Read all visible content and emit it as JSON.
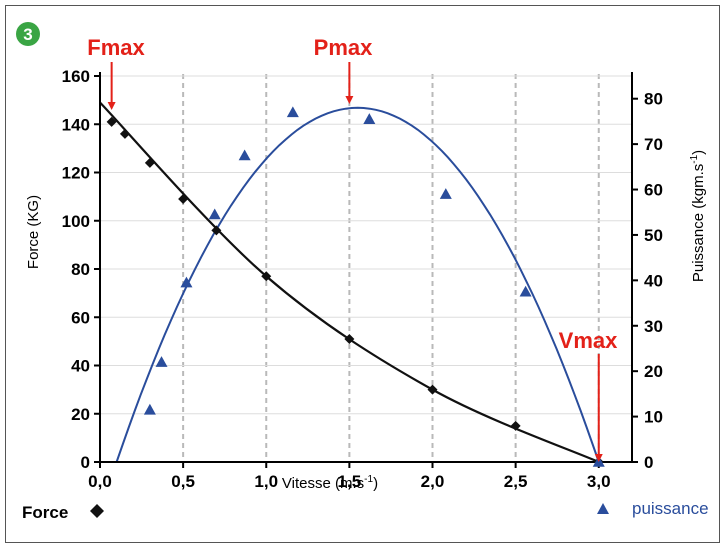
{
  "figure_number": "3",
  "colors": {
    "badge": "#3aa544",
    "force": "#111111",
    "power": "#2a4d9c",
    "annotation": "#e32119",
    "grid": "#b9b9b9",
    "axis": "#000000"
  },
  "chart_data": {
    "type": "scatter",
    "xlabel": "Vitesse (m.s",
    "xlabel_sup": "-1",
    "xlabel_end": ")",
    "ylabel_left": "Force (KG)",
    "ylabel_right": "Puissance (kgm.s",
    "ylabel_right_sup": "-1",
    "ylabel_right_end": ")",
    "xlim": [
      0,
      3.2
    ],
    "ylim_left": [
      0,
      160
    ],
    "ylim_right": [
      0,
      85
    ],
    "x_ticks": [
      "0,0",
      "0,5",
      "1,0",
      "1,5",
      "2,0",
      "2,5",
      "3,0"
    ],
    "x_tick_values": [
      0,
      0.5,
      1.0,
      1.5,
      2.0,
      2.5,
      3.0
    ],
    "y_left_ticks": [
      0,
      20,
      40,
      60,
      80,
      100,
      120,
      140,
      160
    ],
    "y_right_ticks": [
      0,
      10,
      20,
      30,
      40,
      50,
      60,
      70,
      80
    ],
    "grid": "vertical dashed at major x ticks",
    "series": [
      {
        "name": "Force",
        "marker": "diamond",
        "axis": "left",
        "points": [
          [
            0.07,
            141
          ],
          [
            0.15,
            136
          ],
          [
            0.3,
            124
          ],
          [
            0.5,
            109
          ],
          [
            0.7,
            96
          ],
          [
            1.0,
            77
          ],
          [
            1.5,
            51
          ],
          [
            2.0,
            30
          ],
          [
            2.5,
            15
          ],
          [
            3.0,
            0
          ]
        ]
      },
      {
        "name": "puissance",
        "marker": "triangle",
        "axis": "right",
        "points": [
          [
            0.3,
            11.5
          ],
          [
            0.37,
            22
          ],
          [
            0.52,
            39.5
          ],
          [
            0.69,
            54.5
          ],
          [
            0.87,
            67.5
          ],
          [
            1.16,
            77
          ],
          [
            1.62,
            75.5
          ],
          [
            2.08,
            59
          ],
          [
            2.56,
            37.5
          ],
          [
            3.0,
            0
          ]
        ]
      }
    ],
    "fit_curves": [
      {
        "series": "Force",
        "shape": "decreasing curve",
        "through": [
          [
            0,
            149
          ],
          [
            1.0,
            77
          ],
          [
            2.0,
            30
          ],
          [
            3.0,
            0
          ]
        ]
      },
      {
        "series": "puissance",
        "shape": "parabola",
        "through": [
          [
            0.1,
            0
          ],
          [
            1.55,
            78
          ],
          [
            3.0,
            0
          ]
        ]
      }
    ],
    "annotations": [
      {
        "label": "Fmax",
        "x": 0.07
      },
      {
        "label": "Pmax",
        "x": 1.5
      },
      {
        "label": "Vmax",
        "x": 3.0
      }
    ],
    "legend": [
      {
        "label": "Force",
        "marker": "diamond",
        "placement": "bottom-left"
      },
      {
        "label": "puissance",
        "marker": "triangle",
        "placement": "bottom-right"
      }
    ]
  }
}
